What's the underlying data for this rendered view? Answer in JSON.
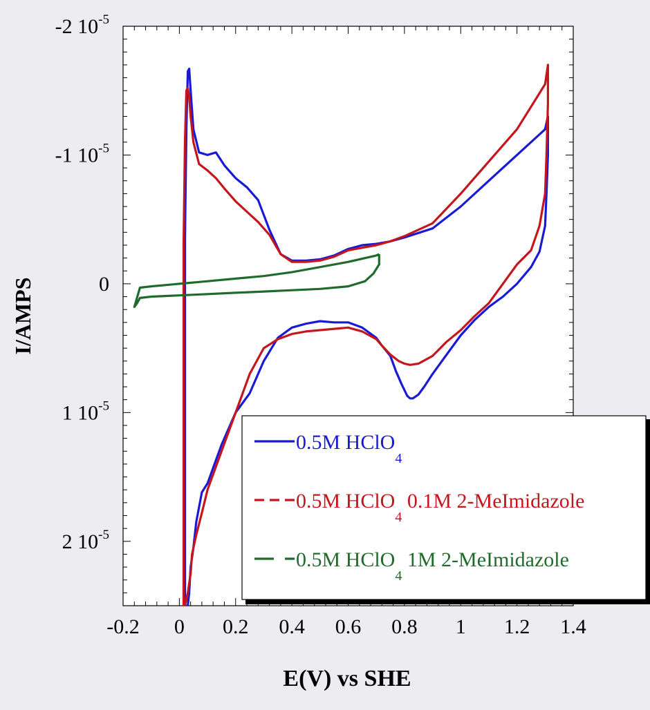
{
  "chart_data": {
    "type": "line",
    "title": "",
    "xlabel": "E(V) vs SHE",
    "ylabel": "I/AMPS",
    "xlim": [
      -0.2,
      1.4
    ],
    "ylim": [
      2.5e-05,
      -2e-05
    ],
    "y_axis_inverted": true,
    "grid": false,
    "legend_placement": "bottom-right",
    "x_ticks": [
      {
        "value": -0.2,
        "label": "-0.2"
      },
      {
        "value": 0,
        "label": "0"
      },
      {
        "value": 0.2,
        "label": "0.2"
      },
      {
        "value": 0.4,
        "label": "0.4"
      },
      {
        "value": 0.6,
        "label": "0.6"
      },
      {
        "value": 0.8,
        "label": "0.8"
      },
      {
        "value": 1.0,
        "label": "1"
      },
      {
        "value": 1.2,
        "label": "1.2"
      },
      {
        "value": 1.4,
        "label": "1.4"
      }
    ],
    "y_ticks": [
      {
        "value": -2e-05,
        "mantissa": "-2 10",
        "exp": "-5"
      },
      {
        "value": -1e-05,
        "mantissa": "-1 10",
        "exp": "-5"
      },
      {
        "value": 0,
        "mantissa": "0",
        "exp": ""
      },
      {
        "value": 1e-05,
        "mantissa": "1 10",
        "exp": "-5"
      },
      {
        "value": 2e-05,
        "mantissa": "2 10",
        "exp": "-5"
      }
    ],
    "series": [
      {
        "name": "0.5M HClO4",
        "legend": {
          "pre": "0.5M HClO",
          "sub": "4",
          "post": ""
        },
        "color": "#1a1ad4",
        "dash": "solid",
        "x": [
          0.02,
          0.025,
          0.03,
          0.035,
          0.04,
          0.05,
          0.07,
          0.1,
          0.13,
          0.16,
          0.2,
          0.24,
          0.28,
          0.32,
          0.36,
          0.4,
          0.45,
          0.5,
          0.55,
          0.6,
          0.65,
          0.7,
          0.75,
          0.8,
          0.9,
          1.0,
          1.1,
          1.2,
          1.3,
          1.31,
          1.31,
          1.305,
          1.3,
          1.28,
          1.25,
          1.2,
          1.15,
          1.1,
          1.05,
          1.0,
          0.95,
          0.9,
          0.87,
          0.85,
          0.83,
          0.82,
          0.81,
          0.79,
          0.77,
          0.75,
          0.72,
          0.7,
          0.65,
          0.6,
          0.55,
          0.5,
          0.45,
          0.4,
          0.35,
          0.3,
          0.25,
          0.2,
          0.15,
          0.1,
          0.08,
          0.06,
          0.05,
          0.04,
          0.035,
          0.03,
          0.025,
          0.02,
          0.02
        ],
        "y": [
          -3.5e-06,
          -1.2e-05,
          -1.65e-05,
          -1.67e-05,
          -1.5e-05,
          -1.2e-05,
          -1.02e-05,
          -1e-05,
          -1.02e-05,
          -9.2e-06,
          -8.2e-06,
          -7.5e-06,
          -6.5e-06,
          -4.2e-06,
          -2.3e-06,
          -1.8e-06,
          -1.8e-06,
          -1.9e-06,
          -2.2e-06,
          -2.7e-06,
          -3e-06,
          -3.1e-06,
          -3.3e-06,
          -3.6e-06,
          -4.3e-06,
          -6e-06,
          -8e-06,
          -1e-05,
          -1.2e-05,
          -1.3e-05,
          -1e-05,
          -7e-06,
          -4.5e-06,
          -2.5e-06,
          -1.3e-06,
          0,
          1e-06,
          1.8e-06,
          2.8e-06,
          4e-06,
          5.5e-06,
          7e-06,
          8e-06,
          8.6e-06,
          8.9e-06,
          8.9e-06,
          8.7e-06,
          7.8e-06,
          6.8e-06,
          5.6e-06,
          4.8e-06,
          4.2e-06,
          3.4e-06,
          3e-06,
          3e-06,
          2.9e-06,
          3.1e-06,
          3.4e-06,
          4.2e-06,
          6e-06,
          8.5e-06,
          1e-05,
          1.25e-05,
          1.55e-05,
          1.62e-05,
          1.85e-05,
          2.05e-05,
          2.2e-05,
          2.4e-05,
          2.5e-05,
          2.5e-05,
          2.5e-05,
          -3.5e-06
        ]
      },
      {
        "name": "0.5M HClO4 0.1M 2-MeImidazole",
        "legend": {
          "pre": "0.5M HClO",
          "sub": "4",
          "post": " 0.1M 2-MeImidazole"
        },
        "color": "#c4161c",
        "dash": "dashed",
        "x": [
          0.015,
          0.02,
          0.025,
          0.03,
          0.035,
          0.04,
          0.05,
          0.07,
          0.1,
          0.13,
          0.16,
          0.2,
          0.24,
          0.28,
          0.32,
          0.36,
          0.4,
          0.45,
          0.5,
          0.55,
          0.6,
          0.65,
          0.7,
          0.75,
          0.8,
          0.9,
          1.0,
          1.1,
          1.2,
          1.3,
          1.31,
          1.31,
          1.305,
          1.3,
          1.28,
          1.25,
          1.2,
          1.15,
          1.1,
          1.05,
          1.0,
          0.95,
          0.9,
          0.85,
          0.82,
          0.8,
          0.78,
          0.75,
          0.72,
          0.7,
          0.65,
          0.6,
          0.55,
          0.5,
          0.45,
          0.4,
          0.35,
          0.3,
          0.25,
          0.2,
          0.15,
          0.1,
          0.08,
          0.06,
          0.045,
          0.04,
          0.03,
          0.02,
          0.015,
          0.015
        ],
        "y": [
          -3e-06,
          -1.1e-05,
          -1.5e-05,
          -1.52e-05,
          -1.45e-05,
          -1.3e-05,
          -1.1e-05,
          -9.3e-06,
          -8.8e-06,
          -8.2e-06,
          -7.4e-06,
          -6.4e-06,
          -5.6e-06,
          -4.8e-06,
          -3.8e-06,
          -2.3e-06,
          -1.7e-06,
          -1.7e-06,
          -1.8e-06,
          -2.1e-06,
          -2.6e-06,
          -2.8e-06,
          -3e-06,
          -3.3e-06,
          -3.7e-06,
          -4.7e-06,
          -7e-06,
          -9.5e-06,
          -1.2e-05,
          -1.55e-05,
          -1.7e-05,
          -1.4e-05,
          -1e-05,
          -7e-06,
          -4.5e-06,
          -2.6e-06,
          -1.5e-06,
          0,
          1.5e-06,
          2.5e-06,
          3.6e-06,
          4.5e-06,
          5.6e-06,
          6.2e-06,
          6.3e-06,
          6.2e-06,
          6e-06,
          5.5e-06,
          4.8e-06,
          4.3e-06,
          3.7e-06,
          3.4e-06,
          3.5e-06,
          3.6e-06,
          3.7e-06,
          3.9e-06,
          4.3e-06,
          5e-06,
          7e-06,
          1e-05,
          1.3e-05,
          1.6e-05,
          1.78e-05,
          1.95e-05,
          2.1e-05,
          2.25e-05,
          2.4e-05,
          2.5e-05,
          2.5e-05,
          -3e-06
        ]
      },
      {
        "name": "0.5M HClO4 1M 2-MeImidazole",
        "legend": {
          "pre": "0.5M HClO",
          "sub": "4",
          "post": " 1M 2-MeImidazole"
        },
        "color": "#1f6b2c",
        "dash": "long-dash",
        "x": [
          0.71,
          0.7,
          0.6,
          0.5,
          0.4,
          0.3,
          0.2,
          0.1,
          0,
          -0.1,
          -0.14,
          -0.16,
          -0.15,
          -0.14,
          -0.1,
          0,
          0.1,
          0.2,
          0.3,
          0.4,
          0.5,
          0.6,
          0.66,
          0.69,
          0.71,
          0.71
        ],
        "y": [
          -2.3e-06,
          -2.2e-06,
          -1.7e-06,
          -1.3e-06,
          -9e-07,
          -6e-07,
          -4e-07,
          -2e-07,
          0,
          2e-07,
          3e-07,
          1.8e-06,
          1.5e-06,
          1.1e-06,
          1e-06,
          9e-07,
          8e-07,
          7e-07,
          6e-07,
          5e-07,
          4e-07,
          2e-07,
          -2e-07,
          -8e-07,
          -1.5e-06,
          -2.3e-06
        ]
      }
    ]
  }
}
